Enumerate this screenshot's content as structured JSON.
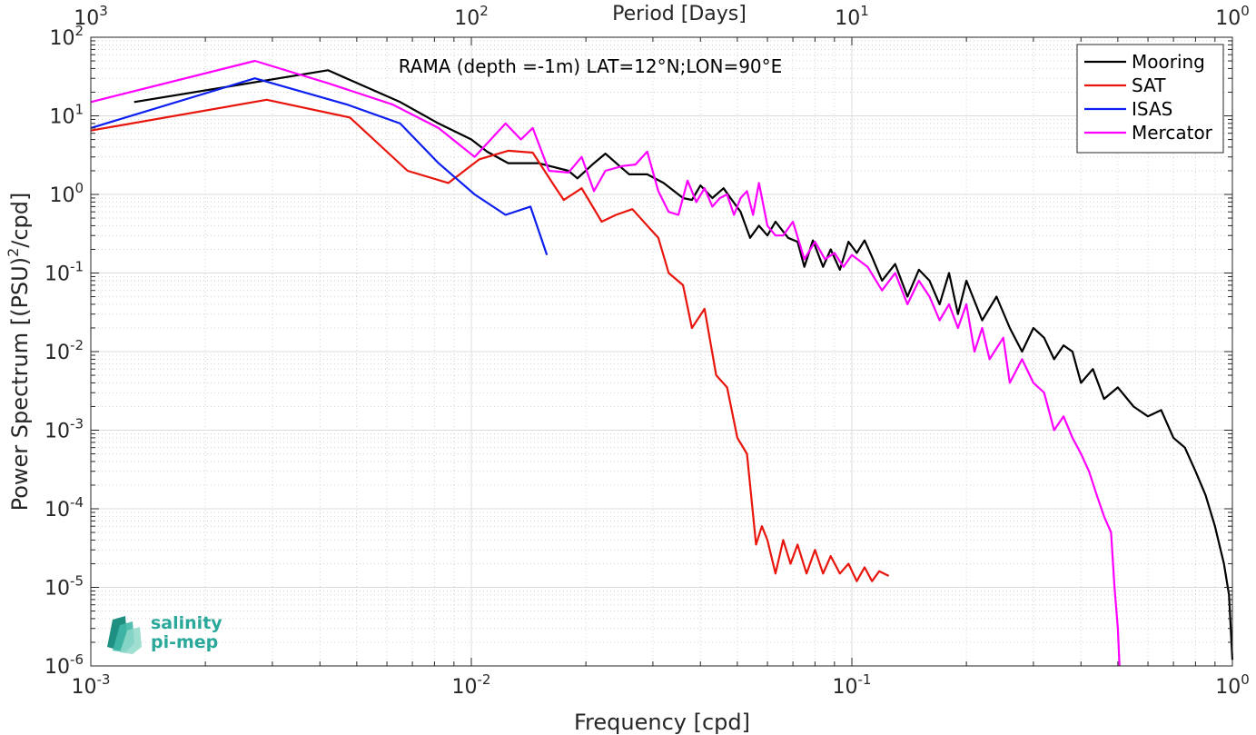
{
  "chart_data": {
    "type": "line",
    "title": "RAMA (depth =-1m) LAT=12°N;LON=90°E",
    "xlabel": "Frequency [cpd]",
    "ylabel_main": "Power Spectrum [(PSU)",
    "ylabel_sup": "2",
    "ylabel_tail": "/cpd]",
    "x2label": "Period [Days]",
    "xscale": "log",
    "yscale": "log",
    "xlim": [
      0.001,
      1
    ],
    "ylim": [
      1e-06,
      100
    ],
    "grid": true,
    "legend_position": "top-right",
    "x_ticks": [
      {
        "v": 0.001,
        "base": "10",
        "exp": "-3"
      },
      {
        "v": 0.01,
        "base": "10",
        "exp": "-2"
      },
      {
        "v": 0.1,
        "base": "10",
        "exp": "-1"
      },
      {
        "v": 1,
        "base": "10",
        "exp": "0"
      }
    ],
    "x2_ticks": [
      {
        "v": 0.001,
        "base": "10",
        "exp": "3"
      },
      {
        "v": 0.01,
        "base": "10",
        "exp": "2"
      },
      {
        "v": 0.1,
        "base": "10",
        "exp": "1"
      },
      {
        "v": 1,
        "base": "10",
        "exp": "0"
      }
    ],
    "y_ticks": [
      {
        "v": 1e-06,
        "base": "10",
        "exp": "-6"
      },
      {
        "v": 1e-05,
        "base": "10",
        "exp": "-5"
      },
      {
        "v": 0.0001,
        "base": "10",
        "exp": "-4"
      },
      {
        "v": 0.001,
        "base": "10",
        "exp": "-3"
      },
      {
        "v": 0.01,
        "base": "10",
        "exp": "-2"
      },
      {
        "v": 0.1,
        "base": "10",
        "exp": "-1"
      },
      {
        "v": 1,
        "base": "10",
        "exp": "0"
      },
      {
        "v": 10,
        "base": "10",
        "exp": "1"
      },
      {
        "v": 100,
        "base": "10",
        "exp": "2"
      }
    ],
    "series": [
      {
        "name": "Mooring",
        "color": "#000000",
        "points": [
          [
            0.0013,
            15
          ],
          [
            0.0042,
            38
          ],
          [
            0.0065,
            15
          ],
          [
            0.0082,
            8
          ],
          [
            0.01,
            5
          ],
          [
            0.011,
            3.5
          ],
          [
            0.0125,
            2.5
          ],
          [
            0.015,
            2.5
          ],
          [
            0.018,
            2
          ],
          [
            0.019,
            1.6
          ],
          [
            0.021,
            2.5
          ],
          [
            0.0225,
            3.3
          ],
          [
            0.0245,
            2.3
          ],
          [
            0.026,
            1.8
          ],
          [
            0.029,
            1.8
          ],
          [
            0.032,
            1.4
          ],
          [
            0.036,
            0.9
          ],
          [
            0.038,
            0.85
          ],
          [
            0.04,
            1.3
          ],
          [
            0.043,
            0.9
          ],
          [
            0.046,
            1.2
          ],
          [
            0.048,
            0.9
          ],
          [
            0.051,
            0.6
          ],
          [
            0.054,
            0.28
          ],
          [
            0.057,
            0.4
          ],
          [
            0.06,
            0.3
          ],
          [
            0.063,
            0.45
          ],
          [
            0.068,
            0.28
          ],
          [
            0.072,
            0.25
          ],
          [
            0.075,
            0.12
          ],
          [
            0.079,
            0.26
          ],
          [
            0.084,
            0.12
          ],
          [
            0.088,
            0.2
          ],
          [
            0.093,
            0.11
          ],
          [
            0.098,
            0.25
          ],
          [
            0.103,
            0.18
          ],
          [
            0.108,
            0.26
          ],
          [
            0.113,
            0.16
          ],
          [
            0.12,
            0.08
          ],
          [
            0.13,
            0.13
          ],
          [
            0.14,
            0.05
          ],
          [
            0.15,
            0.11
          ],
          [
            0.16,
            0.08
          ],
          [
            0.17,
            0.04
          ],
          [
            0.18,
            0.1
          ],
          [
            0.19,
            0.03
          ],
          [
            0.2,
            0.08
          ],
          [
            0.22,
            0.025
          ],
          [
            0.24,
            0.05
          ],
          [
            0.26,
            0.02
          ],
          [
            0.28,
            0.01
          ],
          [
            0.3,
            0.02
          ],
          [
            0.32,
            0.015
          ],
          [
            0.34,
            0.008
          ],
          [
            0.36,
            0.012
          ],
          [
            0.38,
            0.01
          ],
          [
            0.4,
            0.004
          ],
          [
            0.43,
            0.006
          ],
          [
            0.46,
            0.0025
          ],
          [
            0.5,
            0.0035
          ],
          [
            0.55,
            0.002
          ],
          [
            0.6,
            0.0015
          ],
          [
            0.65,
            0.0018
          ],
          [
            0.7,
            0.0008
          ],
          [
            0.75,
            0.0006
          ],
          [
            0.8,
            0.0003
          ],
          [
            0.85,
            0.00015
          ],
          [
            0.9,
            6e-05
          ],
          [
            0.95,
            2e-05
          ],
          [
            0.98,
            8e-06
          ],
          [
            1.0,
            1.2e-06
          ]
        ]
      },
      {
        "name": "SAT",
        "color": "#e8150c",
        "points": [
          [
            0.001,
            6.5
          ],
          [
            0.0029,
            16
          ],
          [
            0.0048,
            9.5
          ],
          [
            0.0068,
            2
          ],
          [
            0.0087,
            1.4
          ],
          [
            0.0105,
            2.8
          ],
          [
            0.0125,
            3.6
          ],
          [
            0.0145,
            3.4
          ],
          [
            0.0165,
            1.3
          ],
          [
            0.0175,
            0.85
          ],
          [
            0.0195,
            1.2
          ],
          [
            0.022,
            0.45
          ],
          [
            0.024,
            0.55
          ],
          [
            0.0265,
            0.65
          ],
          [
            0.029,
            0.4
          ],
          [
            0.031,
            0.28
          ],
          [
            0.033,
            0.1
          ],
          [
            0.036,
            0.07
          ],
          [
            0.038,
            0.02
          ],
          [
            0.041,
            0.035
          ],
          [
            0.044,
            0.005
          ],
          [
            0.047,
            0.0035
          ],
          [
            0.05,
            0.0008
          ],
          [
            0.053,
            0.0005
          ],
          [
            0.056,
            3.5e-05
          ],
          [
            0.058,
            6e-05
          ],
          [
            0.06,
            4e-05
          ],
          [
            0.063,
            1.5e-05
          ],
          [
            0.066,
            4e-05
          ],
          [
            0.069,
            2e-05
          ],
          [
            0.072,
            3.5e-05
          ],
          [
            0.076,
            1.5e-05
          ],
          [
            0.08,
            3e-05
          ],
          [
            0.084,
            1.5e-05
          ],
          [
            0.088,
            2.5e-05
          ],
          [
            0.093,
            1.5e-05
          ],
          [
            0.098,
            2e-05
          ],
          [
            0.103,
            1.2e-05
          ],
          [
            0.108,
            1.8e-05
          ],
          [
            0.113,
            1.2e-05
          ],
          [
            0.118,
            1.6e-05
          ],
          [
            0.125,
            1.4e-05
          ]
        ]
      },
      {
        "name": "ISAS",
        "color": "#0c1ef0",
        "points": [
          [
            0.001,
            7
          ],
          [
            0.0027,
            30
          ],
          [
            0.0047,
            14
          ],
          [
            0.0065,
            8
          ],
          [
            0.0082,
            2.5
          ],
          [
            0.0102,
            1
          ],
          [
            0.0123,
            0.55
          ],
          [
            0.0143,
            0.7
          ],
          [
            0.0158,
            0.17
          ]
        ]
      },
      {
        "name": "Mercator",
        "color": "#ff00ff",
        "points": [
          [
            0.001,
            15
          ],
          [
            0.0027,
            50
          ],
          [
            0.0042,
            26
          ],
          [
            0.0062,
            14
          ],
          [
            0.0082,
            7
          ],
          [
            0.0102,
            3
          ],
          [
            0.0123,
            8
          ],
          [
            0.0135,
            5
          ],
          [
            0.0145,
            7
          ],
          [
            0.016,
            2
          ],
          [
            0.018,
            1.9
          ],
          [
            0.0195,
            3
          ],
          [
            0.021,
            1.1
          ],
          [
            0.0225,
            2
          ],
          [
            0.025,
            2.3
          ],
          [
            0.027,
            2.4
          ],
          [
            0.029,
            3.5
          ],
          [
            0.031,
            1.1
          ],
          [
            0.033,
            0.6
          ],
          [
            0.035,
            0.55
          ],
          [
            0.037,
            1.5
          ],
          [
            0.039,
            0.8
          ],
          [
            0.041,
            1.2
          ],
          [
            0.043,
            0.7
          ],
          [
            0.045,
            0.9
          ],
          [
            0.047,
            1
          ],
          [
            0.049,
            0.55
          ],
          [
            0.051,
            0.9
          ],
          [
            0.053,
            1.1
          ],
          [
            0.055,
            0.55
          ],
          [
            0.057,
            1.4
          ],
          [
            0.06,
            0.4
          ],
          [
            0.063,
            0.3
          ],
          [
            0.066,
            0.3
          ],
          [
            0.07,
            0.45
          ],
          [
            0.075,
            0.15
          ],
          [
            0.08,
            0.25
          ],
          [
            0.085,
            0.15
          ],
          [
            0.09,
            0.18
          ],
          [
            0.095,
            0.12
          ],
          [
            0.1,
            0.17
          ],
          [
            0.11,
            0.12
          ],
          [
            0.12,
            0.06
          ],
          [
            0.13,
            0.1
          ],
          [
            0.14,
            0.04
          ],
          [
            0.15,
            0.08
          ],
          [
            0.16,
            0.05
          ],
          [
            0.17,
            0.025
          ],
          [
            0.18,
            0.04
          ],
          [
            0.19,
            0.02
          ],
          [
            0.2,
            0.04
          ],
          [
            0.21,
            0.01
          ],
          [
            0.22,
            0.02
          ],
          [
            0.23,
            0.008
          ],
          [
            0.25,
            0.015
          ],
          [
            0.26,
            0.004
          ],
          [
            0.28,
            0.008
          ],
          [
            0.3,
            0.004
          ],
          [
            0.32,
            0.003
          ],
          [
            0.34,
            0.001
          ],
          [
            0.36,
            0.0015
          ],
          [
            0.38,
            0.0008
          ],
          [
            0.4,
            0.0005
          ],
          [
            0.42,
            0.0003
          ],
          [
            0.44,
            0.00015
          ],
          [
            0.46,
            8e-05
          ],
          [
            0.48,
            5e-05
          ],
          [
            0.49,
            1e-05
          ],
          [
            0.5,
            3e-06
          ],
          [
            0.505,
            1e-06
          ]
        ]
      }
    ]
  },
  "logo": {
    "line1": "salinity",
    "line2": "pi-mep",
    "color": "#2aa89a"
  }
}
